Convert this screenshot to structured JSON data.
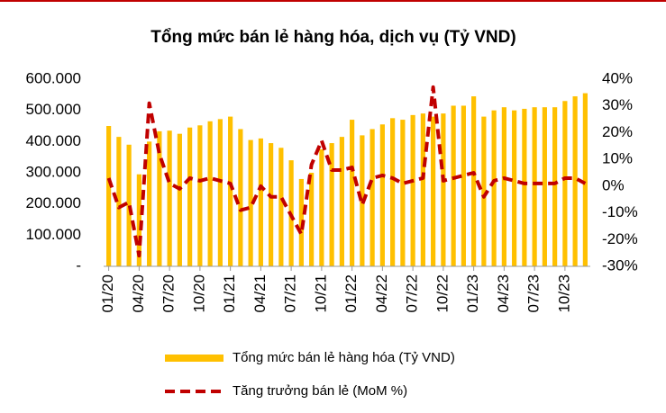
{
  "chart_data": {
    "type": "bar_line",
    "title": "Tổng mức bán lẻ hàng hóa, dịch vụ (Tỷ VND)",
    "categories": [
      "01/20",
      null,
      null,
      "04/20",
      null,
      null,
      "07/20",
      null,
      null,
      "10/20",
      null,
      null,
      "01/21",
      null,
      null,
      "04/21",
      null,
      null,
      "07/21",
      null,
      null,
      "10/21",
      null,
      null,
      "01/22",
      null,
      null,
      "04/22",
      null,
      null,
      "07/22",
      null,
      null,
      "10/22",
      null,
      null,
      "01/23",
      null,
      null,
      "04/23",
      null,
      null,
      "07/23",
      null,
      null,
      "10/23",
      null,
      null
    ],
    "series": [
      {
        "name": "Tổng mức bán lẻ hàng hóa (Tỷ VND)",
        "type": "bar",
        "color": "#ffc000",
        "values": [
          450000,
          415000,
          390000,
          295000,
          400000,
          433000,
          435000,
          425000,
          445000,
          452000,
          465000,
          472000,
          480000,
          440000,
          405000,
          410000,
          395000,
          380000,
          340000,
          280000,
          300000,
          375000,
          395000,
          415000,
          470000,
          420000,
          440000,
          455000,
          475000,
          470000,
          485000,
          490000,
          480000,
          490000,
          515000,
          515000,
          545000,
          480000,
          500000,
          510000,
          500000,
          505000,
          510000,
          510000,
          510000,
          530000,
          545000,
          555000
        ]
      },
      {
        "name": "Tăng trưởng bán lẻ (MoM %)",
        "type": "line",
        "axis": "y2",
        "color": "#c00000",
        "values": [
          3,
          -8,
          -6,
          -26,
          31,
          12,
          1,
          -1,
          3,
          2,
          3,
          2,
          1,
          -9,
          -8,
          0,
          -4,
          -4,
          -11,
          -18,
          8,
          17,
          6,
          6,
          7,
          -7,
          3,
          4,
          3,
          1,
          2,
          3,
          37,
          2,
          3,
          4,
          5,
          -4,
          2,
          3,
          2,
          1,
          1,
          1,
          1,
          3,
          3,
          1
        ]
      }
    ],
    "ylim": [
      0,
      600000
    ],
    "yticks": [
      {
        "value": 0,
        "label": "-"
      },
      {
        "value": 100000,
        "label": "100.000"
      },
      {
        "value": 200000,
        "label": "200.000"
      },
      {
        "value": 300000,
        "label": "300.000"
      },
      {
        "value": 400000,
        "label": "400.000"
      },
      {
        "value": 500000,
        "label": "500.000"
      },
      {
        "value": 600000,
        "label": "600.000"
      }
    ],
    "y2lim": [
      -30,
      40
    ],
    "y2ticks": [
      {
        "value": -30,
        "label": "-30%"
      },
      {
        "value": -20,
        "label": "-20%"
      },
      {
        "value": -10,
        "label": "-10%"
      },
      {
        "value": 0,
        "label": "0%"
      },
      {
        "value": 10,
        "label": "10%"
      },
      {
        "value": 20,
        "label": "20%"
      },
      {
        "value": 30,
        "label": "30%"
      },
      {
        "value": 40,
        "label": "40%"
      }
    ],
    "legend": "bottom"
  }
}
